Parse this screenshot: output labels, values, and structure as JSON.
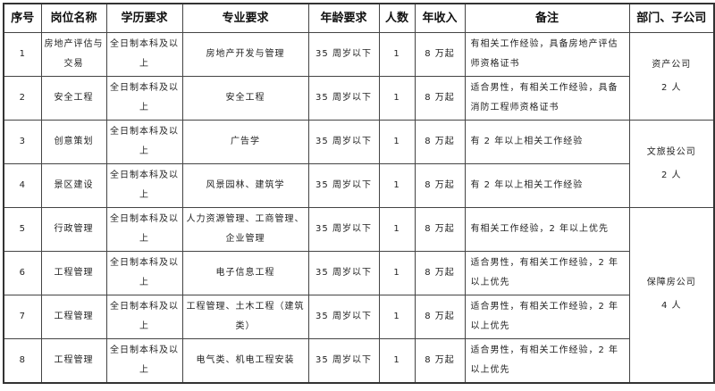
{
  "headers": [
    "序号",
    "岗位名称",
    "学历要求",
    "专业要求",
    "年龄要求",
    "人数",
    "年收入",
    "备注",
    "部门、子公司"
  ],
  "rows": [
    {
      "no": "1",
      "title": "房地产评估与交易",
      "edu": "全日制本科及以上",
      "major": "房地产开发与管理",
      "age": "35 周岁以下",
      "count": "1",
      "salary": "8 万起",
      "note": "有相关工作经验，具备房地产评估师资格证书"
    },
    {
      "no": "2",
      "title": "安全工程",
      "edu": "全日制本科及以上",
      "major": "安全工程",
      "age": "35 周岁以下",
      "count": "1",
      "salary": "8 万起",
      "note": "适合男性，有相关工作经验，具备消防工程师资格证书"
    },
    {
      "no": "3",
      "title": "创意策划",
      "edu": "全日制本科及以上",
      "major": "广告学",
      "age": "35 周岁以下",
      "count": "1",
      "salary": "8 万起",
      "note": "有 2 年以上相关工作经验"
    },
    {
      "no": "4",
      "title": "景区建设",
      "edu": "全日制本科及以上",
      "major": "风景园林、建筑学",
      "age": "35 周岁以下",
      "count": "1",
      "salary": "8 万起",
      "note": "有 2 年以上相关工作经验"
    },
    {
      "no": "5",
      "title": "行政管理",
      "edu": "全日制本科及以上",
      "major": "人力资源管理、工商管理、企业管理",
      "age": "35 周岁以下",
      "count": "1",
      "salary": "8 万起",
      "note": "有相关工作经验，2 年以上优先"
    },
    {
      "no": "6",
      "title": "工程管理",
      "edu": "全日制本科及以上",
      "major": "电子信息工程",
      "age": "35 周岁以下",
      "count": "1",
      "salary": "8 万起",
      "note": "适合男性，有相关工作经验，2 年以上优先"
    },
    {
      "no": "7",
      "title": "工程管理",
      "edu": "全日制本科及以上",
      "major": "工程管理、土木工程（建筑类）",
      "age": "35 周岁以下",
      "count": "1",
      "salary": "8 万起",
      "note": "适合男性，有相关工作经验，2 年以上优先"
    },
    {
      "no": "8",
      "title": "工程管理",
      "edu": "全日制本科及以上",
      "major": "电气类、机电工程安装",
      "age": "35 周岁以下",
      "count": "1",
      "salary": "8 万起",
      "note": "适合男性，有相关工作经验，2 年以上优先"
    }
  ],
  "departments": [
    {
      "name": "资产公司",
      "count": "2 人"
    },
    {
      "name": "文旅投公司",
      "count": "2 人"
    },
    {
      "name": "保障房公司",
      "count": "4 人"
    }
  ]
}
